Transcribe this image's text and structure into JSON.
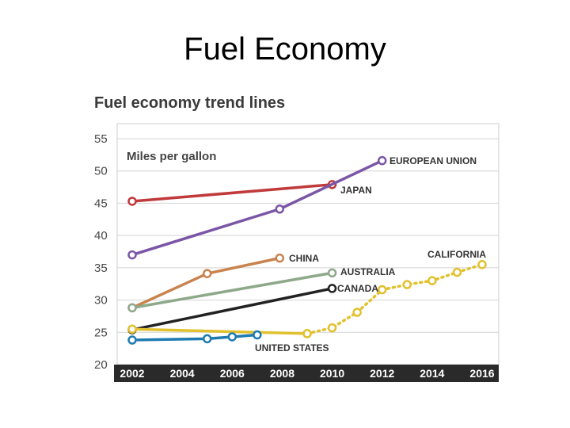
{
  "slide": {
    "title": "Fuel Economy"
  },
  "chart_data": {
    "type": "line",
    "title": "Fuel economy trend lines",
    "ylabel": "Miles per gallon",
    "xlabel": "",
    "xlim": [
      2002,
      2016
    ],
    "ylim": [
      20,
      55
    ],
    "xticks": [
      2002,
      2004,
      2006,
      2008,
      2010,
      2012,
      2014,
      2016
    ],
    "yticks": [
      20,
      25,
      30,
      35,
      40,
      45,
      50,
      55
    ],
    "grid": true,
    "series": [
      {
        "name": "JAPAN",
        "color": "#c0393b",
        "style": "solid",
        "points": [
          [
            2002,
            45.3
          ],
          [
            2010,
            47.9
          ]
        ]
      },
      {
        "name": "EUROPEAN UNION",
        "color": "#7b56a6",
        "style": "solid",
        "points": [
          [
            2002,
            37.0
          ],
          [
            2007.9,
            44.1
          ],
          [
            2012,
            51.6
          ]
        ]
      },
      {
        "name": "CHINA",
        "color": "#c9834e",
        "style": "solid",
        "points": [
          [
            2002,
            28.8
          ],
          [
            2005,
            34.1
          ],
          [
            2007.9,
            36.5
          ]
        ]
      },
      {
        "name": "AUSTRALIA",
        "color": "#8ea98a",
        "style": "solid",
        "points": [
          [
            2002,
            28.8
          ],
          [
            2010,
            34.2
          ]
        ]
      },
      {
        "name": "CANADA",
        "color": "#222222",
        "style": "solid",
        "points": [
          [
            2002,
            25.4
          ],
          [
            2010,
            31.8
          ]
        ]
      },
      {
        "name": "UNITED STATES",
        "color": "#e2c12e",
        "style": "solid",
        "points": [
          [
            2002,
            25.5
          ],
          [
            2009,
            24.8
          ]
        ]
      },
      {
        "name": "",
        "color": "#1e7bb2",
        "style": "solid",
        "points": [
          [
            2002,
            23.8
          ],
          [
            2005,
            24.0
          ],
          [
            2006,
            24.3
          ],
          [
            2007,
            24.6
          ]
        ]
      },
      {
        "name": "CALIFORNIA",
        "color": "#e2c12e",
        "style": "dotted",
        "points": [
          [
            2009,
            24.8
          ],
          [
            2010,
            25.7
          ],
          [
            2011,
            28.1
          ],
          [
            2012,
            31.6
          ],
          [
            2013,
            32.4
          ],
          [
            2014,
            33.0
          ],
          [
            2015,
            34.3
          ],
          [
            2016,
            35.5
          ]
        ]
      }
    ]
  }
}
